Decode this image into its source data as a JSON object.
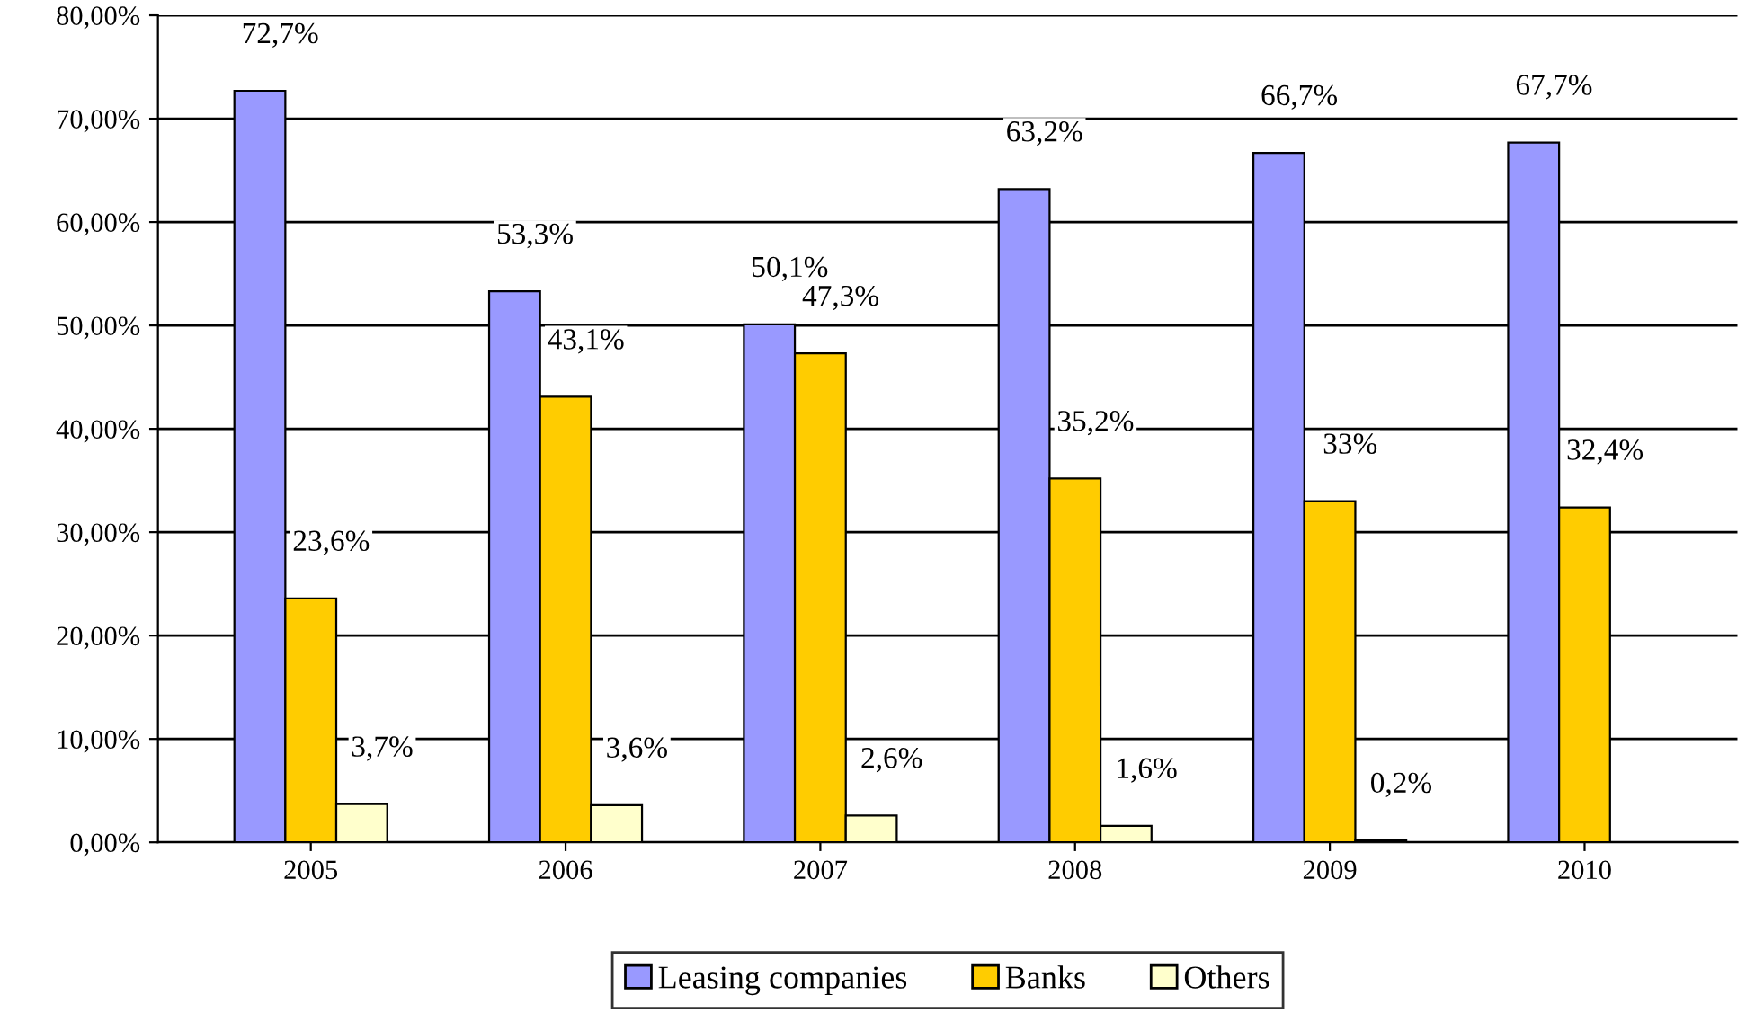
{
  "chart_data": {
    "type": "bar",
    "categories": [
      "2005",
      "2006",
      "2007",
      "2008",
      "2009",
      "2010"
    ],
    "series": [
      {
        "name": "Leasing companies",
        "color": "#9999ff",
        "values": [
          72.7,
          53.3,
          50.1,
          63.2,
          66.7,
          67.7
        ],
        "value_labels": [
          "72,7%",
          "53,3%",
          "50,1%",
          "63,2%",
          "66,7%",
          "67,7%"
        ]
      },
      {
        "name": "Banks",
        "color": "#ffcc00",
        "values": [
          23.6,
          43.1,
          47.3,
          35.2,
          33,
          32.4
        ],
        "value_labels": [
          "23,6%",
          "43,1%",
          "47,3%",
          "35,2%",
          "33%",
          "32,4%"
        ]
      },
      {
        "name": "Others",
        "color": "#ffffcc",
        "values": [
          3.7,
          3.6,
          2.6,
          1.6,
          0.2,
          null
        ],
        "value_labels": [
          "3,7%",
          "3,6%",
          "2,6%",
          "1,6%",
          "0,2%",
          null
        ]
      }
    ],
    "ylim": [
      0,
      80
    ],
    "yticks": [
      {
        "value": 0,
        "label": "0,00%"
      },
      {
        "value": 10,
        "label": "10,00%"
      },
      {
        "value": 20,
        "label": "20,00%"
      },
      {
        "value": 30,
        "label": "30,00%"
      },
      {
        "value": 40,
        "label": "40,00%"
      },
      {
        "value": 50,
        "label": "50,00%"
      },
      {
        "value": 60,
        "label": "60,00%"
      },
      {
        "value": 70,
        "label": "70,00%"
      },
      {
        "value": 80,
        "label": "80,00%"
      }
    ],
    "grid": "y",
    "legend": "bottom"
  }
}
